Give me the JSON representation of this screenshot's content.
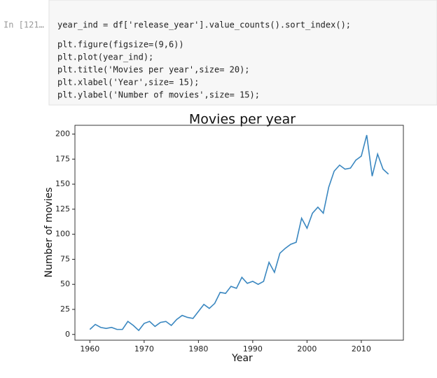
{
  "cell": {
    "prompt": "In [121…",
    "code": [
      "year_ind = df['release_year'].value_counts().sort_index();",
      "plt.figure(figsize=(9,6))",
      "plt.plot(year_ind);",
      "plt.title('Movies per year',size= 20);",
      "plt.xlabel('Year',size= 15);",
      "plt.ylabel('Number of movies',size= 15);"
    ]
  },
  "chart_data": {
    "type": "line",
    "title": "Movies per year",
    "x_label": "Year",
    "y_label": "Number of movies",
    "x": [
      1960,
      1961,
      1962,
      1963,
      1964,
      1965,
      1966,
      1967,
      1968,
      1969,
      1970,
      1971,
      1972,
      1973,
      1974,
      1975,
      1976,
      1977,
      1978,
      1979,
      1980,
      1981,
      1982,
      1983,
      1984,
      1985,
      1986,
      1987,
      1988,
      1989,
      1990,
      1991,
      1992,
      1993,
      1994,
      1995,
      1996,
      1997,
      1998,
      1999,
      2000,
      2001,
      2002,
      2003,
      2004,
      2005,
      2006,
      2007,
      2008,
      2009,
      2010,
      2011,
      2012,
      2013,
      2014,
      2015
    ],
    "values": [
      5,
      10,
      7,
      6,
      7,
      5,
      5,
      13,
      9,
      4,
      11,
      13,
      8,
      12,
      13,
      9,
      15,
      19,
      17,
      16,
      23,
      30,
      26,
      31,
      42,
      41,
      48,
      46,
      57,
      51,
      53,
      50,
      53,
      72,
      62,
      81,
      86,
      90,
      92,
      116,
      106,
      121,
      127,
      121,
      147,
      163,
      169,
      165,
      166,
      174,
      178,
      199,
      158,
      180,
      165,
      160
    ],
    "color": "#3a87c0",
    "xlim": [
      1957.25,
      2017.75
    ],
    "xticks": [
      1960,
      1970,
      1980,
      1990,
      2000,
      2010
    ],
    "ylim": [
      -5.75,
      208.75
    ],
    "yticks": [
      0,
      25,
      50,
      75,
      100,
      125,
      150,
      175,
      200
    ]
  }
}
